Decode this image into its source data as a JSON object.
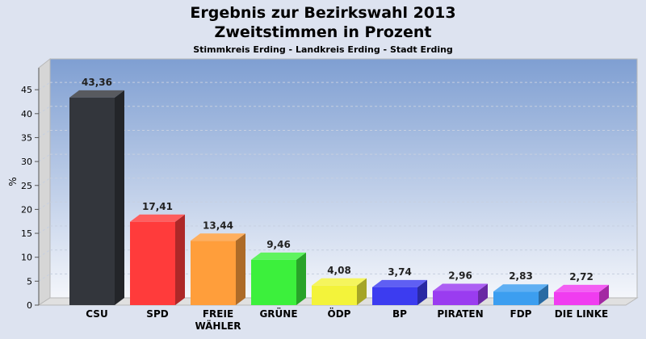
{
  "chart_data": {
    "type": "bar",
    "title": "Ergebnis zur Bezirkswahl 2013",
    "subtitle": "Zweitstimmen in Prozent",
    "subsubtitle": "Stimmkreis Erding - Landkreis Erding - Stadt Erding",
    "ylabel": "%",
    "xlabel": "",
    "ylim": [
      0,
      48
    ],
    "yticks": [
      0,
      5,
      10,
      15,
      20,
      25,
      30,
      35,
      40,
      45
    ],
    "categories": [
      "CSU",
      "SPD",
      "FREIE\nWÄHLER",
      "GRÜNE",
      "ÖDP",
      "BP",
      "PIRATEN",
      "FDP",
      "DIE LINKE"
    ],
    "values": [
      43.36,
      17.41,
      13.44,
      9.46,
      4.08,
      3.74,
      2.96,
      2.83,
      2.72
    ],
    "value_labels": [
      "43,36",
      "17,41",
      "13,44",
      "9,46",
      "4,08",
      "3,74",
      "2,96",
      "2,83",
      "2,72"
    ],
    "colors": [
      "#33363c",
      "#ff3b3b",
      "#ff9e3b",
      "#3cf03c",
      "#f3f33a",
      "#3c3cf0",
      "#9a3cf0",
      "#3c9ef0",
      "#f03cf0"
    ],
    "grid": true,
    "legend": "none"
  }
}
